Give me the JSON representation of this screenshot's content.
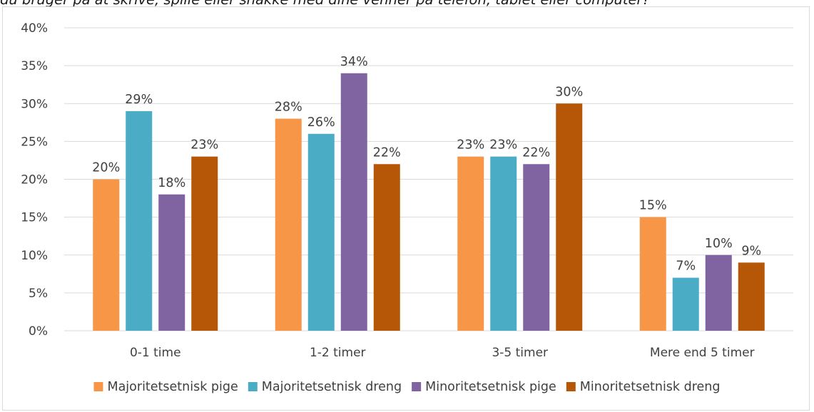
{
  "chart_data": {
    "type": "bar",
    "title": "du bruger på at skrive, spille eller snakke med dine venner på telefon, tablet eller computer?",
    "categories": [
      "0-1 time",
      "1-2 timer",
      "3-5 timer",
      "Mere end 5 timer"
    ],
    "series": [
      {
        "name": "Majoritetsetnisk pige",
        "color": "#F79646",
        "values": [
          20,
          28,
          23,
          15
        ]
      },
      {
        "name": "Majoritetsetnisk dreng",
        "color": "#4BACC6",
        "values": [
          29,
          26,
          23,
          7
        ]
      },
      {
        "name": "Minoritetsetnisk pige",
        "color": "#8064A2",
        "values": [
          18,
          34,
          22,
          10
        ]
      },
      {
        "name": "Minoritetsetnisk dreng",
        "color": "#B65708",
        "values": [
          23,
          22,
          30,
          9
        ]
      }
    ],
    "ylim": [
      0,
      40
    ],
    "yticks": [
      "0%",
      "5%",
      "10%",
      "15%",
      "20%",
      "25%",
      "30%",
      "35%",
      "40%"
    ],
    "ytick_values": [
      0,
      5,
      10,
      15,
      20,
      25,
      30,
      35,
      40
    ],
    "value_suffix": "%",
    "grid": true,
    "legend_position": "bottom"
  }
}
